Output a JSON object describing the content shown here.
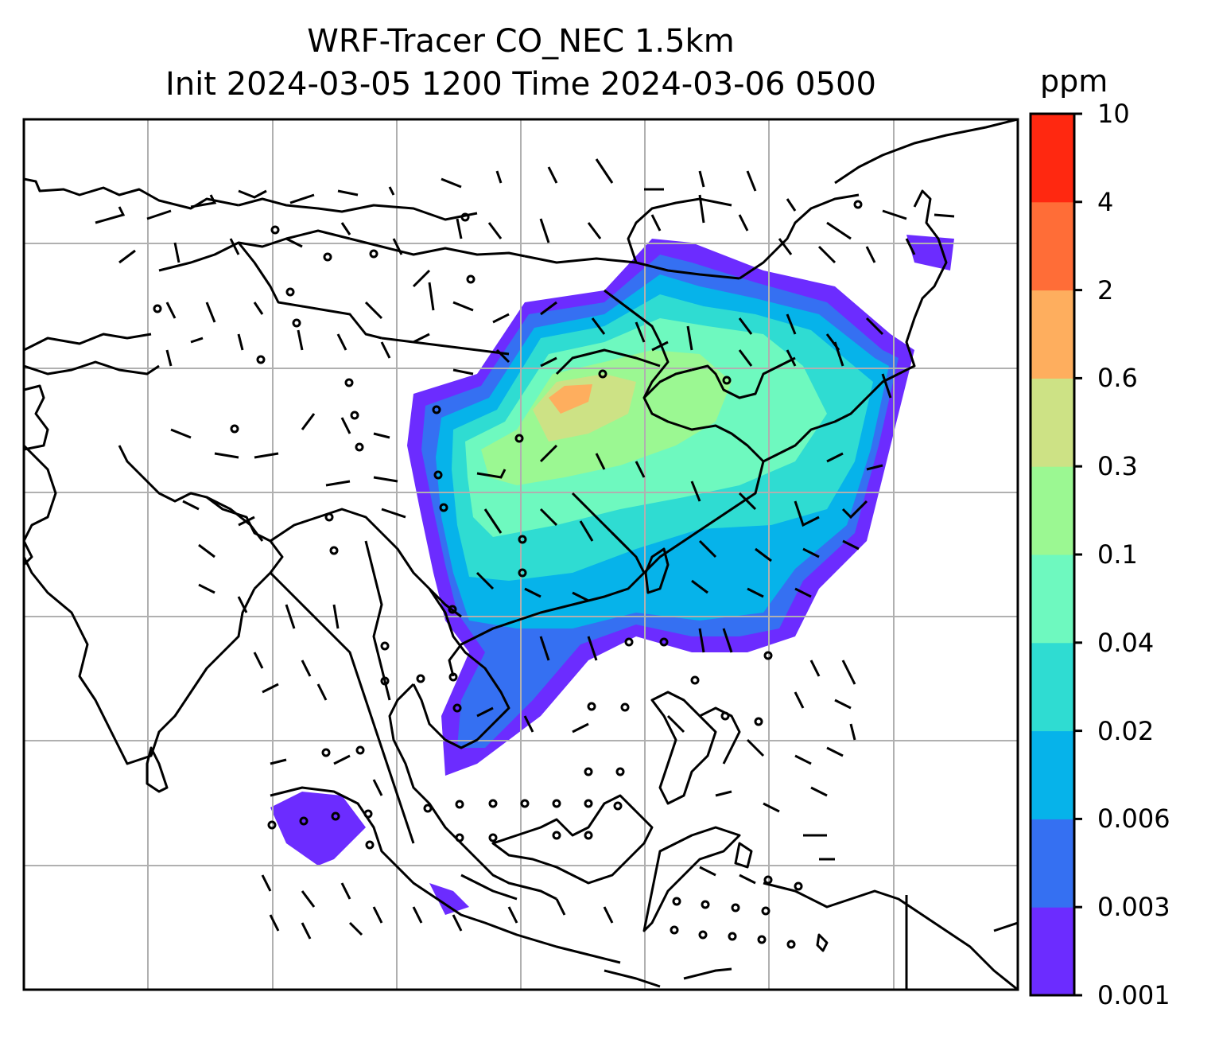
{
  "title": {
    "line1": "WRF-Tracer CO_NEC 1.5km",
    "line2": "Init 2024-03-05 1200 Time 2024-03-06 0500"
  },
  "colorbar": {
    "unit": "ppm",
    "levels": [
      "0.001",
      "0.003",
      "0.006",
      "0.02",
      "0.04",
      "0.1",
      "0.3",
      "0.6",
      "2",
      "4",
      "10"
    ],
    "colors": [
      "#6c2cff",
      "#3570f2",
      "#06b3ea",
      "#2fdcd2",
      "#6ef9bf",
      "#9bf892",
      "#cde285",
      "#feae5e",
      "#ff6d37",
      "#ff2810"
    ]
  },
  "map": {
    "background": "#ffffff",
    "gridline_color": "#b0b0b0",
    "coastline_color": "#000000"
  }
}
